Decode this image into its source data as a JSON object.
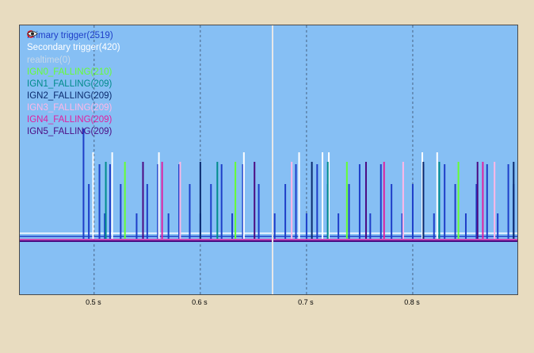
{
  "legend": [
    {
      "label": "Primary trigger(2519)",
      "color": "#1e3ec8",
      "muted": false
    },
    {
      "label": "Secondary trigger(420)",
      "color": "#ffffff",
      "muted": false
    },
    {
      "label": "realtime(0)",
      "color": "#c8d8e8",
      "muted": true
    },
    {
      "label": "IGN0_FALLING(210)",
      "color": "#66ff33",
      "muted": false
    },
    {
      "label": "IGN1_FALLING(209)",
      "color": "#008b8b",
      "muted": false
    },
    {
      "label": "IGN2_FALLING(209)",
      "color": "#0a2a6e",
      "muted": false
    },
    {
      "label": "IGN3_FALLING(209)",
      "color": "#ffb6e6",
      "muted": false
    },
    {
      "label": "IGN4_FALLING(209)",
      "color": "#e020a0",
      "muted": false
    },
    {
      "label": "IGN5_FALLING(209)",
      "color": "#4b0a82",
      "muted": false
    }
  ],
  "icons": {
    "visibility": "eye-icon",
    "disabled": "disabled-icon"
  },
  "chart_data": {
    "type": "line",
    "xlabel": "",
    "ylabel": "",
    "x_ticks": [
      "0.5 s",
      "0.6 s",
      "0.7 s",
      "0.8 s"
    ],
    "x_tick_values": [
      0.5,
      0.6,
      0.7,
      0.8
    ],
    "xlim": [
      0.43,
      0.9
    ],
    "cursor_x": 0.668,
    "grid": "vertical dashed",
    "legend_position": "top-left",
    "background": "#86bff4",
    "series": [
      {
        "name": "Primary trigger(2519)",
        "color": "#1e3ec8",
        "pulses": [
          0.49,
          0.495,
          0.505,
          0.51,
          0.515,
          0.525,
          0.54,
          0.55,
          0.56,
          0.57,
          0.58,
          0.59,
          0.6,
          0.61,
          0.62,
          0.63,
          0.64,
          0.655,
          0.67,
          0.68,
          0.69,
          0.7,
          0.71,
          0.72,
          0.73,
          0.74,
          0.75,
          0.76,
          0.77,
          0.78,
          0.79,
          0.8,
          0.81,
          0.82,
          0.83,
          0.84,
          0.85,
          0.86,
          0.87,
          0.88,
          0.89,
          0.895
        ]
      },
      {
        "name": "Secondary trigger(420)",
        "color": "#ffffff",
        "pulses": [
          0.499,
          0.517,
          0.561,
          0.641,
          0.693,
          0.715,
          0.721,
          0.809,
          0.823
        ]
      },
      {
        "name": "IGN0_FALLING(210)",
        "color": "#66ff33",
        "pulses": [
          0.529,
          0.633,
          0.738,
          0.843
        ]
      },
      {
        "name": "IGN1_FALLING(209)",
        "color": "#008b8b",
        "pulses": [
          0.511,
          0.616,
          0.72,
          0.825
        ]
      },
      {
        "name": "IGN2_FALLING(209)",
        "color": "#0a2a6e",
        "pulses": [
          0.6,
          0.705,
          0.81,
          0.895
        ]
      },
      {
        "name": "IGN3_FALLING(209)",
        "color": "#ffb6e6",
        "pulses": [
          0.581,
          0.686,
          0.791,
          0.877
        ]
      },
      {
        "name": "IGN4_FALLING(209)",
        "color": "#e020a0",
        "pulses": [
          0.564,
          0.668,
          0.773,
          0.866
        ]
      },
      {
        "name": "IGN5_FALLING(209)",
        "color": "#4b0a82",
        "pulses": [
          0.546,
          0.651,
          0.756,
          0.861
        ]
      }
    ]
  }
}
